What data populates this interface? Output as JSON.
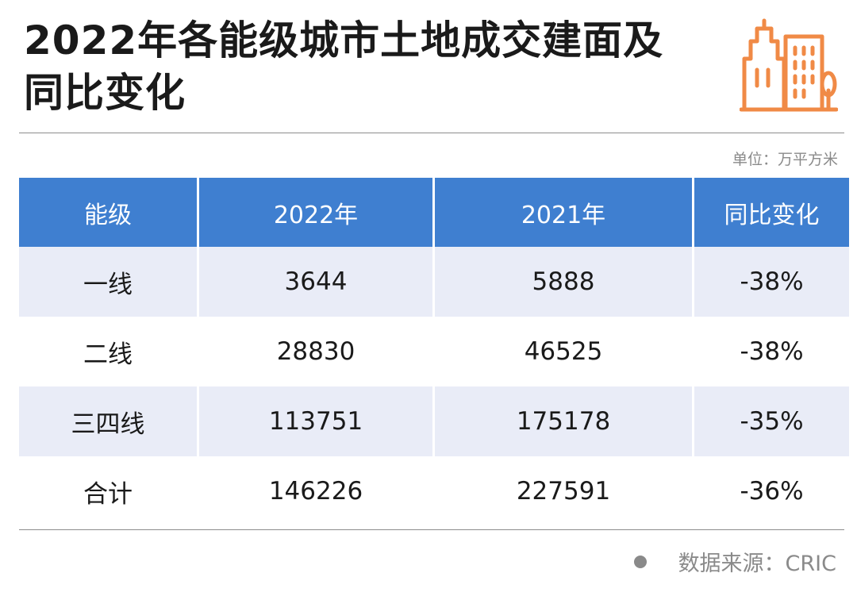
{
  "title": "2022年各能级城市土地成交建面及同比变化",
  "unit_note": "单位：万平方米",
  "source": "数据来源：CRIC",
  "icons": {
    "logo": "city-buildings-icon",
    "source_bullet": "dot-icon"
  },
  "colors": {
    "header_bg": "#3f7fd0",
    "alt_row_bg": "#e9ecf7",
    "logo_stroke": "#f08a46"
  },
  "chart_data": {
    "type": "table",
    "title": "2022年各能级城市土地成交建面及同比变化",
    "columns": [
      "能级",
      "2022年",
      "2021年",
      "同比变化"
    ],
    "rows": [
      [
        "一线",
        "3644",
        "5888",
        "-38%"
      ],
      [
        "二线",
        "28830",
        "46525",
        "-38%"
      ],
      [
        "三四线",
        "113751",
        "175178",
        "-35%"
      ],
      [
        "合计",
        "146226",
        "227591",
        "-36%"
      ]
    ]
  }
}
